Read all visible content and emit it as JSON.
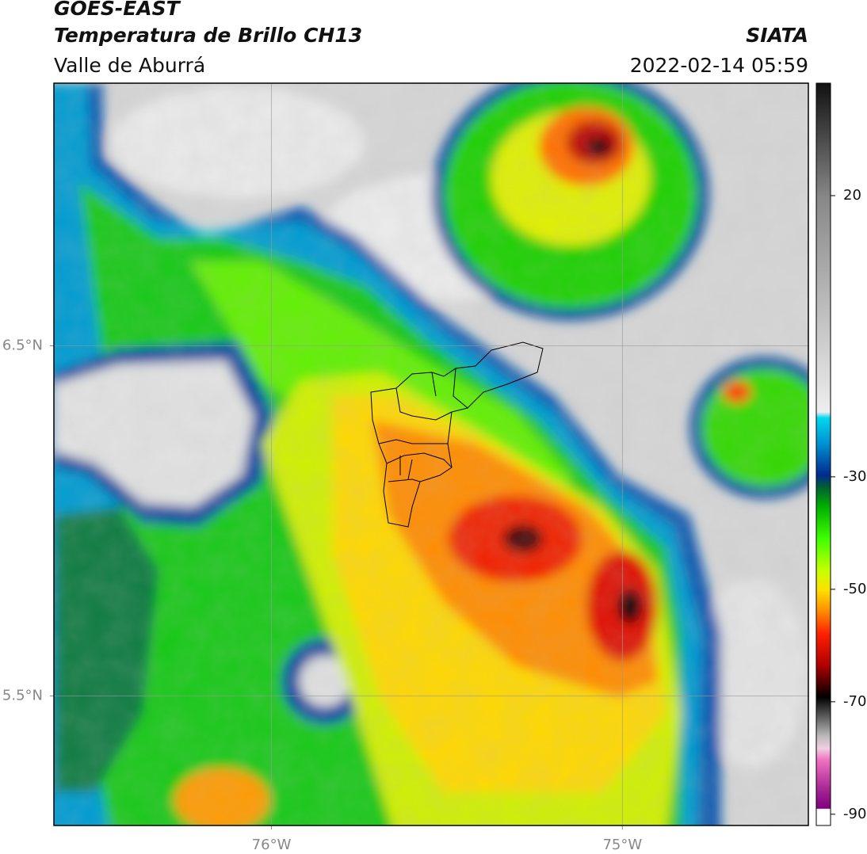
{
  "chart_data": {
    "type": "map",
    "title": "GOES-EAST",
    "subtitle": "Temperatura de Brillo CH13",
    "region": "Valle de Aburrá",
    "source": "SIATA",
    "timestamp": "2022-02-14 05:59",
    "xlim": [
      -76.62,
      -74.47
    ],
    "ylim": [
      5.13,
      7.25
    ],
    "xticks": [
      {
        "value": -76,
        "label": "76°W"
      },
      {
        "value": -75,
        "label": "75°W"
      }
    ],
    "yticks": [
      {
        "value": 6.5,
        "label": "6.5°N"
      },
      {
        "value": 5.5,
        "label": "5.5°N"
      }
    ],
    "grid": true,
    "colorbar": {
      "lim": [
        -92,
        40
      ],
      "ticks": [
        20,
        -30,
        -50,
        -70,
        -90
      ]
    }
  }
}
